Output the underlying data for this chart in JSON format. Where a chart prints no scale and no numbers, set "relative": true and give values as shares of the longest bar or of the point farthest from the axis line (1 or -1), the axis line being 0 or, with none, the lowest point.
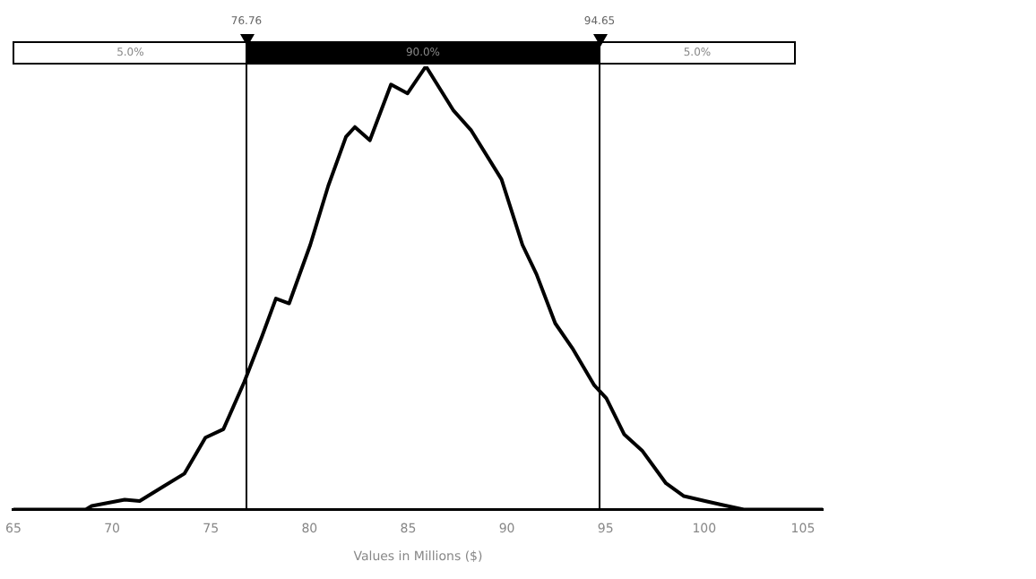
{
  "chart_data": {
    "type": "line",
    "relative": true,
    "xlabel": "Values in Millions ($)",
    "xlim": [
      65,
      106
    ],
    "xticks": [
      65,
      70,
      75,
      80,
      85,
      90,
      95,
      100,
      105
    ],
    "tick_labels": "x",
    "grid": false,
    "legend": false,
    "marker": "none",
    "line_style": "solid",
    "series": [
      {
        "color": "#000000",
        "x": [
          65,
          68.67,
          68.97,
          70.64,
          71.4,
          72.6,
          73.67,
          74.73,
          75.64,
          76.7,
          77.6,
          78.3,
          78.97,
          80.04,
          80.95,
          81.85,
          82.3,
          83.06,
          84.13,
          84.97,
          85.9,
          87.3,
          88.2,
          89.73,
          90.79,
          91.5,
          92.45,
          93.36,
          94.43,
          95.04,
          95.95,
          96.85,
          98.06,
          98.97,
          100.04,
          100.95,
          102,
          106
        ],
        "values": [
          0,
          0,
          0.008,
          0.022,
          0.019,
          0.052,
          0.081,
          0.162,
          0.181,
          0.288,
          0.391,
          0.476,
          0.465,
          0.597,
          0.73,
          0.841,
          0.863,
          0.833,
          0.959,
          0.939,
          1,
          0.9,
          0.855,
          0.745,
          0.597,
          0.531,
          0.42,
          0.361,
          0.28,
          0.251,
          0.169,
          0.133,
          0.059,
          0.03,
          0.019,
          0.01,
          0,
          0
        ]
      }
    ],
    "ref_lines": [
      {
        "axis": "x",
        "value": 76.76,
        "label": "76.76",
        "color": "#000000"
      },
      {
        "axis": "x",
        "value": 94.65,
        "label": "94.65",
        "color": "#000000"
      }
    ],
    "annotations": [
      "5.0%",
      "90.0%",
      "5.0%"
    ]
  }
}
